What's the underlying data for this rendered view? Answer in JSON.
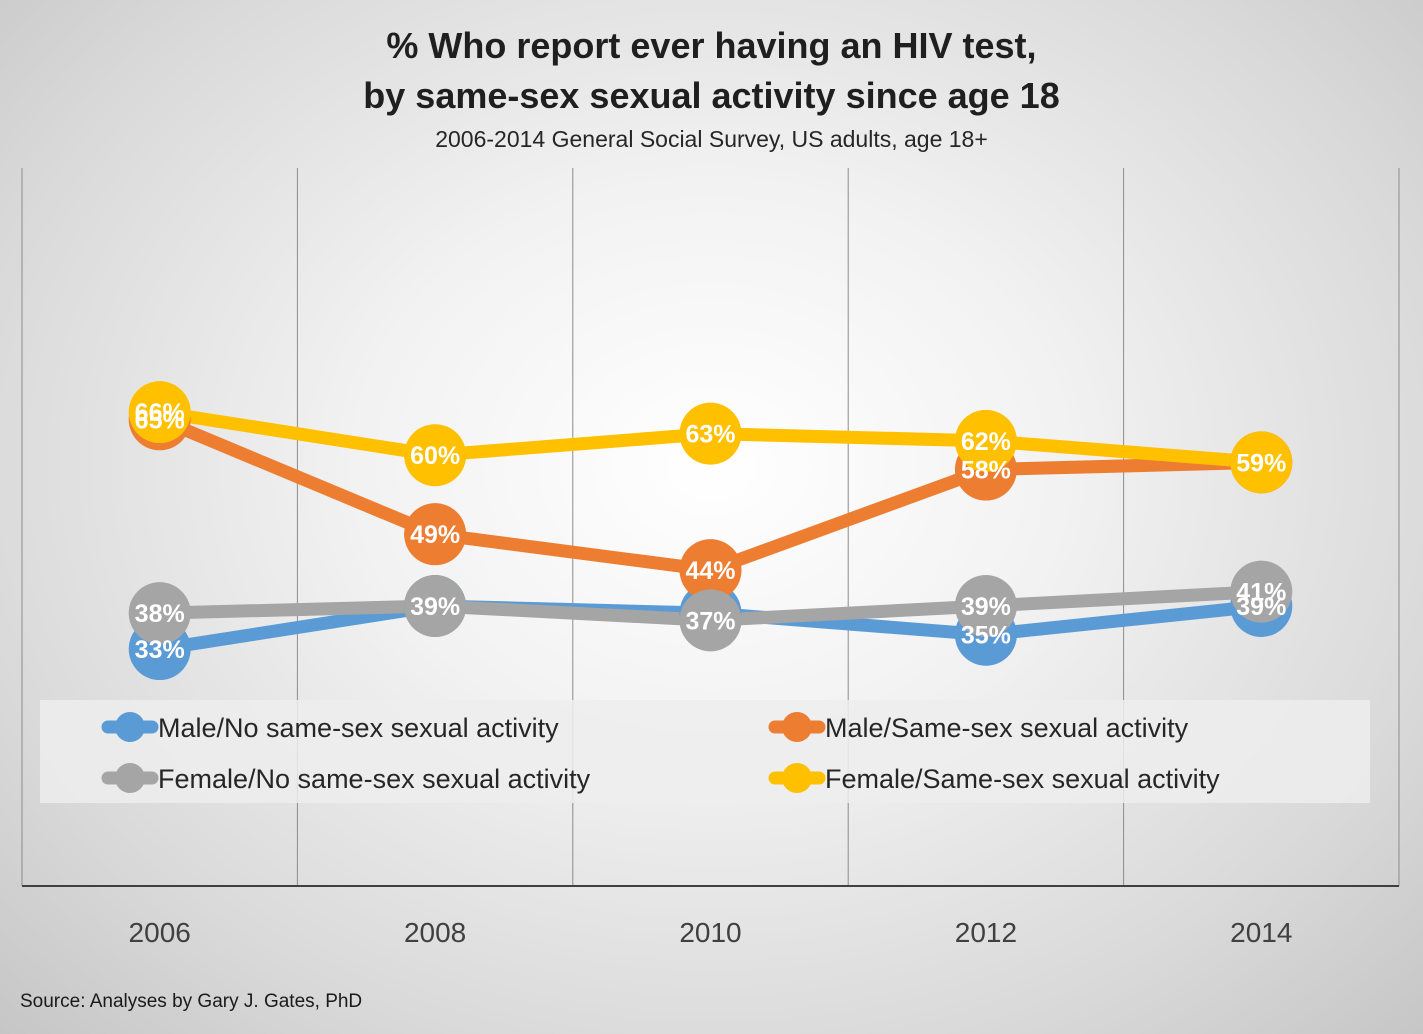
{
  "chart_data": {
    "type": "line",
    "title_line1": "% Who report ever having an HIV test,",
    "title_line2": "by same-sex sexual activity since age 18",
    "subtitle": "2006-2014 General Social Survey, US adults, age 18+",
    "x": [
      "2006",
      "2008",
      "2010",
      "2012",
      "2014"
    ],
    "ylim": [
      0,
      100
    ],
    "grid": "vertical",
    "legend_position": "bottom",
    "series": [
      {
        "name": "Male/No same-sex sexual activity",
        "color": "#5b9bd5",
        "values": [
          33,
          39,
          38,
          35,
          39
        ],
        "labels": [
          "33%",
          "",
          "",
          "35%",
          "39%"
        ]
      },
      {
        "name": "Male/Same-sex sexual activity",
        "color": "#ed7d31",
        "values": [
          65,
          49,
          44,
          58,
          59
        ],
        "labels": [
          "65%",
          "49%",
          "44%",
          "58%",
          ""
        ]
      },
      {
        "name": "Female/No same-sex sexual activity",
        "color": "#a5a5a5",
        "values": [
          38,
          39,
          37,
          39,
          41
        ],
        "labels": [
          "38%",
          "39%",
          "37%",
          "39%",
          "41%"
        ]
      },
      {
        "name": "Female/Same-sex sexual activity",
        "color": "#ffc000",
        "values": [
          66,
          60,
          63,
          62,
          59
        ],
        "labels": [
          "66%",
          "60%",
          "63%",
          "62%",
          "59%"
        ]
      }
    ]
  },
  "source": "Source: Analyses by Gary J. Gates, PhD"
}
